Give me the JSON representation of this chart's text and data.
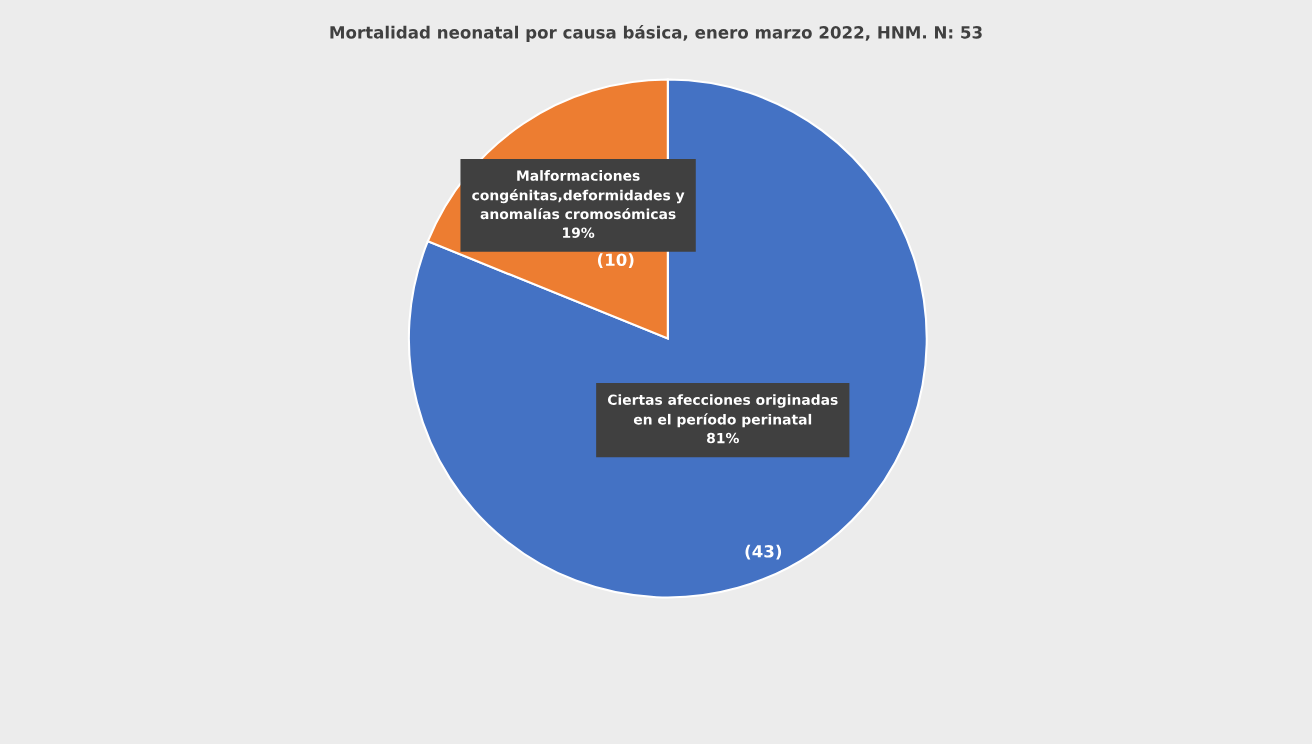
{
  "chart_data": {
    "type": "pie",
    "title": "Mortalidad neonatal por causa básica, enero marzo 2022, HNM. N: 53",
    "categories": [
      "Ciertas afecciones originadas\nen el período perinatal\n81%",
      "Malformaciones\ncongénitas,deformidades y\nanomalías cromosómicas\n19%"
    ],
    "values": [
      43,
      10
    ],
    "colors": [
      "#4472c4",
      "#ed7d31"
    ],
    "value_labels": [
      "(43)",
      "(10)"
    ]
  }
}
